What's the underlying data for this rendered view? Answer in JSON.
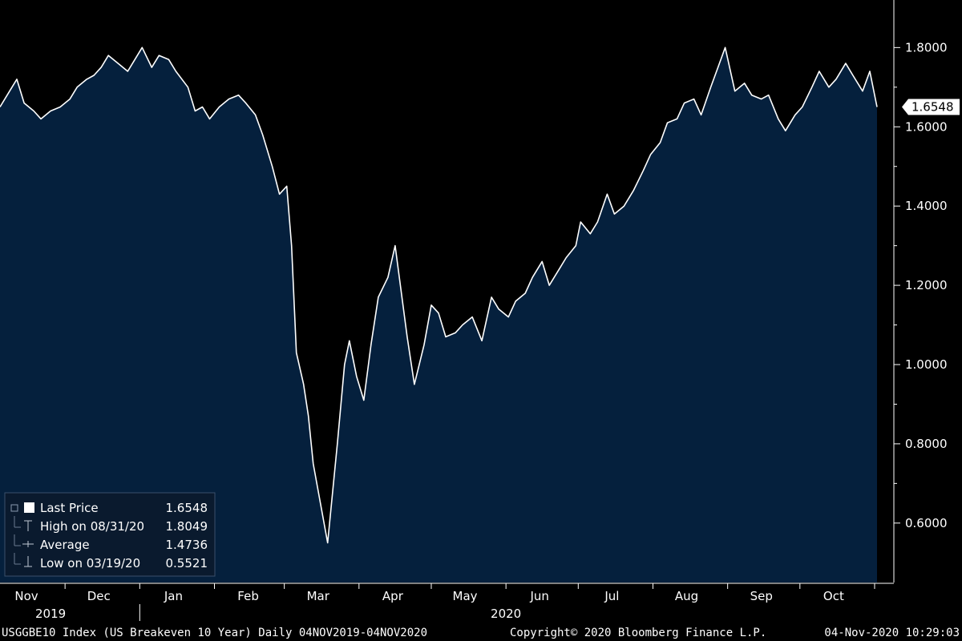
{
  "chart_data": {
    "type": "area",
    "ylim": [
      0.45,
      1.92
    ],
    "yticks": [
      0.6,
      0.8,
      1.0,
      1.2,
      1.4,
      1.6,
      1.8
    ],
    "ytick_labels": [
      "0.6000",
      "0.8000",
      "1.0000",
      "1.2000",
      "1.4000",
      "1.6000",
      "1.8000"
    ],
    "last_value_label": "1.6548",
    "months": [
      {
        "label": "Nov",
        "date": "2019-11-15"
      },
      {
        "label": "Dec",
        "date": "2019-12-15"
      },
      {
        "label": "Jan",
        "date": "2020-01-15"
      },
      {
        "label": "Feb",
        "date": "2020-02-15"
      },
      {
        "label": "Mar",
        "date": "2020-03-15"
      },
      {
        "label": "Apr",
        "date": "2020-04-15"
      },
      {
        "label": "May",
        "date": "2020-05-15"
      },
      {
        "label": "Jun",
        "date": "2020-06-15"
      },
      {
        "label": "Jul",
        "date": "2020-07-15"
      },
      {
        "label": "Aug",
        "date": "2020-08-15"
      },
      {
        "label": "Sep",
        "date": "2020-09-15"
      },
      {
        "label": "Oct",
        "date": "2020-10-15"
      }
    ],
    "years": [
      {
        "label": "2019",
        "date": "2019-11-25"
      },
      {
        "label": "2020",
        "date": "2020-06-01"
      }
    ],
    "year_divider_date": "2020-01-01",
    "x_range": [
      "2019-11-04",
      "2020-11-04"
    ],
    "series": [
      {
        "points": [
          [
            "2019-11-04",
            1.65
          ],
          [
            "2019-11-08",
            1.69
          ],
          [
            "2019-11-11",
            1.72
          ],
          [
            "2019-11-14",
            1.66
          ],
          [
            "2019-11-18",
            1.64
          ],
          [
            "2019-11-21",
            1.62
          ],
          [
            "2019-11-25",
            1.64
          ],
          [
            "2019-11-29",
            1.65
          ],
          [
            "2019-12-03",
            1.67
          ],
          [
            "2019-12-06",
            1.7
          ],
          [
            "2019-12-10",
            1.72
          ],
          [
            "2019-12-13",
            1.73
          ],
          [
            "2019-12-16",
            1.75
          ],
          [
            "2019-12-19",
            1.78
          ],
          [
            "2019-12-23",
            1.76
          ],
          [
            "2019-12-27",
            1.74
          ],
          [
            "2019-12-30",
            1.77
          ],
          [
            "2020-01-02",
            1.8
          ],
          [
            "2020-01-06",
            1.75
          ],
          [
            "2020-01-09",
            1.78
          ],
          [
            "2020-01-13",
            1.77
          ],
          [
            "2020-01-16",
            1.74
          ],
          [
            "2020-01-21",
            1.7
          ],
          [
            "2020-01-24",
            1.64
          ],
          [
            "2020-01-27",
            1.65
          ],
          [
            "2020-01-30",
            1.62
          ],
          [
            "2020-02-03",
            1.65
          ],
          [
            "2020-02-07",
            1.67
          ],
          [
            "2020-02-11",
            1.68
          ],
          [
            "2020-02-14",
            1.66
          ],
          [
            "2020-02-18",
            1.63
          ],
          [
            "2020-02-21",
            1.58
          ],
          [
            "2020-02-25",
            1.5
          ],
          [
            "2020-02-28",
            1.43
          ],
          [
            "2020-03-02",
            1.45
          ],
          [
            "2020-03-04",
            1.3
          ],
          [
            "2020-03-06",
            1.03
          ],
          [
            "2020-03-09",
            0.95
          ],
          [
            "2020-03-11",
            0.87
          ],
          [
            "2020-03-13",
            0.75
          ],
          [
            "2020-03-16",
            0.65
          ],
          [
            "2020-03-19",
            0.55
          ],
          [
            "2020-03-23",
            0.8
          ],
          [
            "2020-03-26",
            1.0
          ],
          [
            "2020-03-28",
            1.06
          ],
          [
            "2020-03-31",
            0.97
          ],
          [
            "2020-04-03",
            0.91
          ],
          [
            "2020-04-06",
            1.05
          ],
          [
            "2020-04-09",
            1.17
          ],
          [
            "2020-04-13",
            1.22
          ],
          [
            "2020-04-16",
            1.3
          ],
          [
            "2020-04-21",
            1.07
          ],
          [
            "2020-04-24",
            0.95
          ],
          [
            "2020-04-28",
            1.05
          ],
          [
            "2020-05-01",
            1.15
          ],
          [
            "2020-05-04",
            1.13
          ],
          [
            "2020-05-07",
            1.07
          ],
          [
            "2020-05-11",
            1.08
          ],
          [
            "2020-05-14",
            1.1
          ],
          [
            "2020-05-18",
            1.12
          ],
          [
            "2020-05-22",
            1.06
          ],
          [
            "2020-05-26",
            1.17
          ],
          [
            "2020-05-29",
            1.14
          ],
          [
            "2020-06-02",
            1.12
          ],
          [
            "2020-06-05",
            1.16
          ],
          [
            "2020-06-09",
            1.18
          ],
          [
            "2020-06-12",
            1.22
          ],
          [
            "2020-06-16",
            1.26
          ],
          [
            "2020-06-19",
            1.2
          ],
          [
            "2020-06-23",
            1.24
          ],
          [
            "2020-06-26",
            1.27
          ],
          [
            "2020-06-30",
            1.3
          ],
          [
            "2020-07-02",
            1.36
          ],
          [
            "2020-07-06",
            1.33
          ],
          [
            "2020-07-09",
            1.36
          ],
          [
            "2020-07-13",
            1.43
          ],
          [
            "2020-07-16",
            1.38
          ],
          [
            "2020-07-20",
            1.4
          ],
          [
            "2020-07-24",
            1.44
          ],
          [
            "2020-07-28",
            1.49
          ],
          [
            "2020-07-31",
            1.53
          ],
          [
            "2020-08-04",
            1.56
          ],
          [
            "2020-08-07",
            1.61
          ],
          [
            "2020-08-11",
            1.62
          ],
          [
            "2020-08-14",
            1.66
          ],
          [
            "2020-08-18",
            1.67
          ],
          [
            "2020-08-21",
            1.63
          ],
          [
            "2020-08-25",
            1.7
          ],
          [
            "2020-08-28",
            1.75
          ],
          [
            "2020-08-31",
            1.8
          ],
          [
            "2020-09-04",
            1.69
          ],
          [
            "2020-09-08",
            1.71
          ],
          [
            "2020-09-11",
            1.68
          ],
          [
            "2020-09-15",
            1.67
          ],
          [
            "2020-09-18",
            1.68
          ],
          [
            "2020-09-22",
            1.62
          ],
          [
            "2020-09-25",
            1.59
          ],
          [
            "2020-09-29",
            1.63
          ],
          [
            "2020-10-02",
            1.65
          ],
          [
            "2020-10-06",
            1.7
          ],
          [
            "2020-10-09",
            1.74
          ],
          [
            "2020-10-13",
            1.7
          ],
          [
            "2020-10-16",
            1.72
          ],
          [
            "2020-10-20",
            1.76
          ],
          [
            "2020-10-23",
            1.73
          ],
          [
            "2020-10-27",
            1.69
          ],
          [
            "2020-10-30",
            1.74
          ],
          [
            "2020-11-02",
            1.65
          ]
        ]
      }
    ],
    "colors": {
      "area": "#05203d",
      "line": "#ffffff",
      "background": "#000000"
    }
  },
  "legend": {
    "rows": [
      {
        "label": "Last Price",
        "value": "1.6548"
      },
      {
        "label": "High on 08/31/20",
        "value": "1.8049"
      },
      {
        "label": "Average",
        "value": "1.4736"
      },
      {
        "label": "Low on 03/19/20",
        "value": "0.5521"
      }
    ]
  },
  "footer": {
    "left": "USGGBE10 Index (US Breakeven 10 Year)  Daily 04NOV2019-04NOV2020",
    "center": "Copyright© 2020 Bloomberg Finance L.P.",
    "right": "04-Nov-2020 10:29:03"
  }
}
